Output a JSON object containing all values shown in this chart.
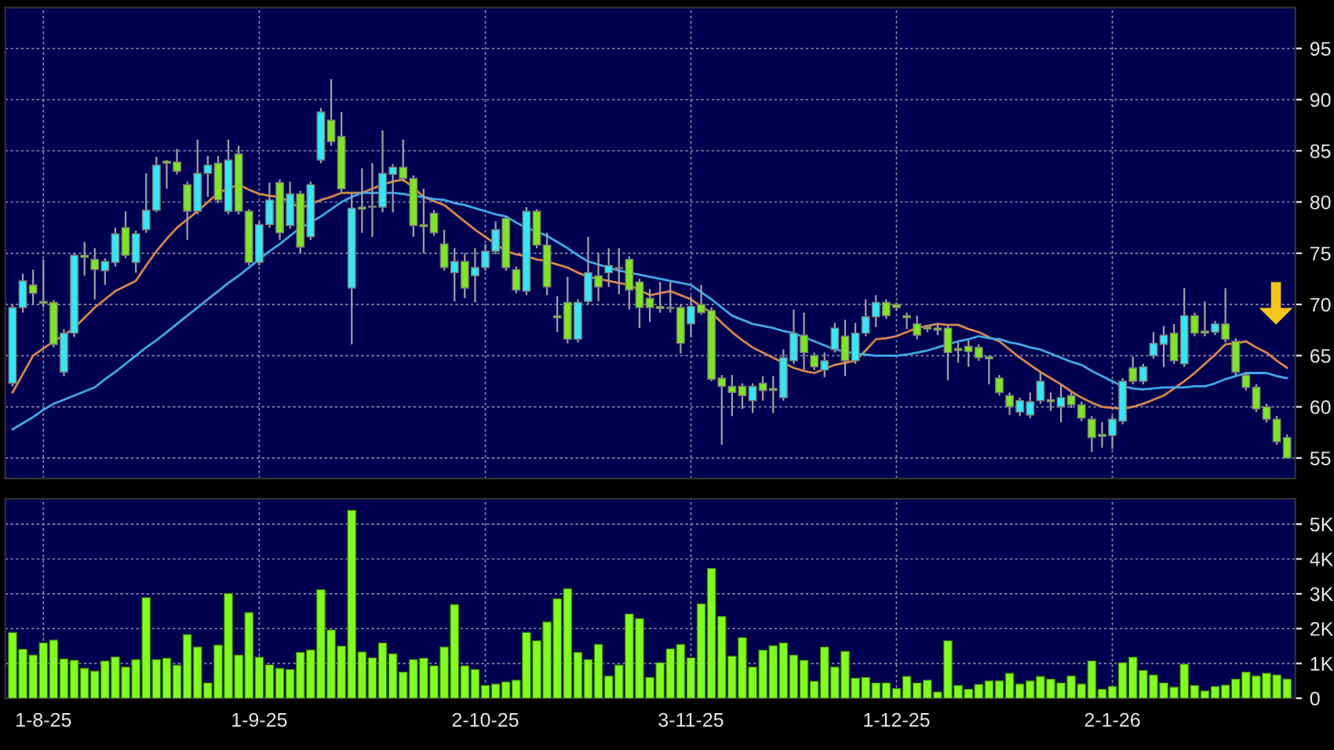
{
  "chart_data": [
    {
      "type": "candlestick",
      "tick_labels": "y",
      "grid": true,
      "ylim": [
        53,
        99
      ],
      "yticks": [
        55,
        60,
        65,
        70,
        75,
        80,
        85,
        90,
        95
      ],
      "categories": [
        null,
        null,
        null,
        null,
        null,
        null,
        null,
        null,
        null,
        null,
        null,
        null,
        null,
        null,
        null,
        null,
        null,
        null,
        null,
        null,
        null,
        null,
        null,
        null,
        null,
        null,
        null,
        null,
        null,
        null,
        null,
        null,
        null,
        null,
        null,
        null,
        null,
        null,
        null,
        null,
        null,
        null,
        null,
        null,
        null,
        null,
        null,
        null,
        null,
        null,
        null,
        null,
        null,
        null,
        null,
        null,
        null,
        null,
        null,
        null,
        null,
        null,
        null,
        null,
        null,
        null,
        null,
        null,
        null,
        null,
        null,
        null,
        null,
        null,
        null,
        null,
        null,
        null,
        null,
        null,
        null,
        null,
        null,
        null,
        null,
        null,
        null,
        null,
        null,
        null,
        null,
        null,
        null,
        null,
        null,
        null,
        null,
        null,
        null,
        null,
        null,
        null,
        null,
        null,
        null,
        null,
        null,
        null,
        null,
        null,
        null,
        null,
        null,
        null,
        null,
        null,
        null,
        null,
        null,
        null,
        null,
        null,
        null,
        null,
        null
      ],
      "ohlc": [
        [
          62.3,
          70,
          62,
          69.7
        ],
        [
          69.7,
          73,
          69.2,
          72.3
        ],
        [
          71.9,
          73.4,
          70,
          71.1
        ],
        [
          70.3,
          74.4,
          69.7,
          70.1
        ],
        [
          70.2,
          70.4,
          65.8,
          66.1
        ],
        [
          63.4,
          67.6,
          63,
          67.2
        ],
        [
          67.2,
          75,
          66.8,
          74.8
        ],
        [
          74.8,
          76.1,
          72.8,
          74.6
        ],
        [
          74.4,
          75.5,
          70.5,
          73.4
        ],
        [
          73.3,
          74.5,
          71.9,
          74.2
        ],
        [
          74.1,
          77.5,
          73.7,
          76.9
        ],
        [
          77.5,
          79.1,
          74.5,
          74.8
        ],
        [
          74.1,
          77.2,
          73.1,
          76.9
        ],
        [
          77.3,
          82.8,
          77,
          79.2
        ],
        [
          79.2,
          84.4,
          79,
          83.6
        ],
        [
          84,
          84.1,
          81.3,
          83.8
        ],
        [
          83.9,
          85.2,
          82.7,
          83
        ],
        [
          81.7,
          82,
          76.3,
          79.1
        ],
        [
          79.1,
          86.1,
          78.8,
          82.8
        ],
        [
          82.8,
          84.5,
          80.5,
          83.6
        ],
        [
          83.8,
          84.5,
          79.9,
          80.2
        ],
        [
          79.1,
          86.1,
          78.8,
          84.1
        ],
        [
          84.7,
          85.5,
          78.8,
          79.1
        ],
        [
          79.1,
          79.3,
          73.8,
          74.1
        ],
        [
          74.1,
          78.1,
          73.8,
          77.8
        ],
        [
          77.8,
          81.9,
          77.5,
          80.2
        ],
        [
          81.9,
          82.2,
          76.3,
          77
        ],
        [
          77.7,
          82,
          77.4,
          80.8
        ],
        [
          80.8,
          81.1,
          75,
          75.6
        ],
        [
          76.6,
          82,
          76.3,
          81.7
        ],
        [
          84.1,
          89.2,
          83.8,
          88.8
        ],
        [
          88,
          92,
          85.5,
          85.9
        ],
        [
          86.4,
          88.8,
          81,
          81.3
        ],
        [
          71.6,
          81,
          66.1,
          79.4
        ],
        [
          79.5,
          83.3,
          77,
          79.3
        ],
        [
          79.5,
          83.8,
          76.6,
          79.6
        ],
        [
          79.5,
          87,
          79,
          82.8
        ],
        [
          82.7,
          83.7,
          79,
          83.4
        ],
        [
          83.4,
          86.1,
          82,
          82.3
        ],
        [
          82.3,
          82.6,
          76.6,
          77.7
        ],
        [
          77.8,
          81.3,
          75,
          77.6
        ],
        [
          78.9,
          79.2,
          76.7,
          77
        ],
        [
          75.9,
          77.3,
          73.3,
          73.6
        ],
        [
          73.1,
          75.5,
          70.3,
          74.2
        ],
        [
          74.2,
          75,
          70.6,
          71.6
        ],
        [
          72.8,
          75.5,
          70.2,
          73.6
        ],
        [
          73.6,
          75.9,
          73.3,
          75.2
        ],
        [
          75.2,
          78.1,
          74.9,
          77.3
        ],
        [
          78.4,
          78.6,
          73.3,
          73.6
        ],
        [
          73.4,
          73.7,
          71.1,
          71.4
        ],
        [
          71.3,
          79.5,
          70.9,
          79.1
        ],
        [
          79.1,
          79.3,
          75.5,
          75.8
        ],
        [
          75.8,
          77,
          70.9,
          71.7
        ],
        [
          68.9,
          70.8,
          67.3,
          68.7
        ],
        [
          70.2,
          72.7,
          66.2,
          66.6
        ],
        [
          66.6,
          70.5,
          66.3,
          70.2
        ],
        [
          70.3,
          76.6,
          70,
          73.1
        ],
        [
          72.8,
          75,
          70.3,
          71.7
        ],
        [
          73.1,
          75.5,
          71.7,
          73.8
        ],
        [
          73.6,
          75.5,
          71,
          73.5
        ],
        [
          74.4,
          74.7,
          69.5,
          71.4
        ],
        [
          72.2,
          72.5,
          67.7,
          69.7
        ],
        [
          70.6,
          71.5,
          68.3,
          69.7
        ],
        [
          69.8,
          72.2,
          69.2,
          69.6
        ],
        [
          69.6,
          72.2,
          69.2,
          69.7
        ],
        [
          69.7,
          70,
          65.2,
          66.2
        ],
        [
          68.1,
          70.8,
          66.8,
          69.8
        ],
        [
          70,
          71.9,
          69,
          69.2
        ],
        [
          69.4,
          69.7,
          62.5,
          62.7
        ],
        [
          62.8,
          63.1,
          56.3,
          62
        ],
        [
          62,
          63.1,
          59.1,
          61.4
        ],
        [
          62,
          62.3,
          59.8,
          61.1
        ],
        [
          60.6,
          62.3,
          59.4,
          62
        ],
        [
          62.3,
          63,
          60.6,
          61.6
        ],
        [
          61.8,
          63,
          59.4,
          61.6
        ],
        [
          60.9,
          65.6,
          60.6,
          64.8
        ],
        [
          64.5,
          69.5,
          64.2,
          67.2
        ],
        [
          67,
          69.2,
          63.6,
          65.3
        ],
        [
          65,
          65.3,
          63.6,
          63.9
        ],
        [
          63.6,
          65.3,
          62.9,
          64.5
        ],
        [
          65.6,
          68.2,
          65.3,
          67.7
        ],
        [
          66.9,
          68.5,
          63,
          64.5
        ],
        [
          64.5,
          68.2,
          64.2,
          67.2
        ],
        [
          67.2,
          70.5,
          66.9,
          68.8
        ],
        [
          68.8,
          70.9,
          67.8,
          70.2
        ],
        [
          70.2,
          70.5,
          68.6,
          68.9
        ],
        [
          70,
          70.2,
          69.4,
          69.7
        ],
        [
          68.9,
          69.2,
          67.6,
          68.7
        ],
        [
          68.1,
          68.9,
          66.6,
          67
        ],
        [
          67.8,
          68,
          67.3,
          67.6
        ],
        [
          67.7,
          68.2,
          67,
          67.5
        ],
        [
          67.7,
          68,
          62.6,
          65.3
        ],
        [
          65.7,
          66.3,
          64.3,
          65.5
        ],
        [
          65.9,
          66.5,
          63.9,
          65.4
        ],
        [
          65.8,
          66.1,
          64.5,
          64.8
        ],
        [
          64.9,
          65,
          62.2,
          64.7
        ],
        [
          62.8,
          63.1,
          61.1,
          61.4
        ],
        [
          61.1,
          61.4,
          59.2,
          60
        ],
        [
          59.5,
          60.9,
          59.1,
          60.6
        ],
        [
          59.2,
          61.4,
          58.9,
          60.5
        ],
        [
          60.6,
          63.4,
          60.3,
          62.5
        ],
        [
          60.7,
          61.4,
          59.6,
          60.5
        ],
        [
          60,
          62.2,
          58.5,
          60.9
        ],
        [
          61.1,
          61.4,
          59.9,
          60.2
        ],
        [
          60.2,
          60.5,
          58.6,
          58.9
        ],
        [
          58.8,
          59.1,
          55.6,
          57
        ],
        [
          57.3,
          58.5,
          56,
          57.1
        ],
        [
          57.2,
          59.1,
          55.9,
          58.8
        ],
        [
          58.6,
          62.8,
          58.3,
          62.5
        ],
        [
          63.8,
          64.9,
          62.2,
          62.5
        ],
        [
          62.5,
          64.2,
          62.2,
          63.9
        ],
        [
          65,
          67.3,
          64.7,
          66.2
        ],
        [
          66.1,
          67.9,
          63.9,
          67
        ],
        [
          67.2,
          68.1,
          64.2,
          64.5
        ],
        [
          64.2,
          71.6,
          63.9,
          68.9
        ],
        [
          68.9,
          69.2,
          66.9,
          67.2
        ],
        [
          67.4,
          70.3,
          66.9,
          67.2
        ],
        [
          67.3,
          68.4,
          67,
          68.1
        ],
        [
          68.1,
          71.6,
          66.3,
          66.6
        ],
        [
          66.4,
          66.7,
          63.1,
          63.4
        ],
        [
          63.1,
          63.4,
          61.6,
          61.9
        ],
        [
          61.9,
          62.2,
          59.5,
          59.8
        ],
        [
          60,
          60.3,
          58.5,
          58.8
        ],
        [
          58.8,
          59.1,
          56.3,
          56.6
        ],
        [
          57,
          57.3,
          55,
          55
        ]
      ],
      "colors": [
        "#33e8f5",
        "#33e8f5",
        "#7ee61e",
        "#7ee61e",
        "#7ee61e",
        "#33e8f5",
        "#33e8f5",
        "#7ee61e",
        "#7ee61e",
        "#33e8f5",
        "#33e8f5",
        "#7ee61e",
        "#33e8f5",
        "#33e8f5",
        "#33e8f5",
        "#7ee61e",
        "#7ee61e",
        "#7ee61e",
        "#33e8f5",
        "#33e8f5",
        "#7ee61e",
        "#33e8f5",
        "#7ee61e",
        "#7ee61e",
        "#33e8f5",
        "#33e8f5",
        "#7ee61e",
        "#33e8f5",
        "#7ee61e",
        "#33e8f5",
        "#33e8f5",
        "#7ee61e",
        "#7ee61e",
        "#33e8f5",
        "#7ee61e",
        "#33e8f5",
        "#33e8f5",
        "#33e8f5",
        "#7ee61e",
        "#7ee61e",
        "#7ee61e",
        "#7ee61e",
        "#7ee61e",
        "#33e8f5",
        "#7ee61e",
        "#33e8f5",
        "#33e8f5",
        "#33e8f5",
        "#7ee61e",
        "#7ee61e",
        "#33e8f5",
        "#7ee61e",
        "#7ee61e",
        "#7ee61e",
        "#7ee61e",
        "#33e8f5",
        "#33e8f5",
        "#7ee61e",
        "#33e8f5",
        "#7ee61e",
        "#7ee61e",
        "#7ee61e",
        "#7ee61e",
        "#7ee61e",
        "#33e8f5",
        "#7ee61e",
        "#33e8f5",
        "#7ee61e",
        "#7ee61e",
        "#7ee61e",
        "#7ee61e",
        "#7ee61e",
        "#33e8f5",
        "#7ee61e",
        "#7ee61e",
        "#33e8f5",
        "#33e8f5",
        "#7ee61e",
        "#7ee61e",
        "#33e8f5",
        "#33e8f5",
        "#7ee61e",
        "#33e8f5",
        "#33e8f5",
        "#33e8f5",
        "#7ee61e",
        "#7ee61e",
        "#7ee61e",
        "#7ee61e",
        "#7ee61e",
        "#7ee61e",
        "#7ee61e",
        "#7ee61e",
        "#7ee61e",
        "#7ee61e",
        "#7ee61e",
        "#7ee61e",
        "#7ee61e",
        "#33e8f5",
        "#33e8f5",
        "#33e8f5",
        "#7ee61e",
        "#33e8f5",
        "#7ee61e",
        "#7ee61e",
        "#7ee61e",
        "#7ee61e",
        "#33e8f5",
        "#33e8f5",
        "#7ee61e",
        "#33e8f5",
        "#33e8f5",
        "#33e8f5",
        "#7ee61e",
        "#33e8f5",
        "#7ee61e",
        "#7ee61e",
        "#33e8f5",
        "#7ee61e",
        "#7ee61e",
        "#7ee61e",
        "#7ee61e",
        "#7ee61e",
        "#7ee61e",
        "#7ee61e"
      ],
      "series": [
        {
          "type": "line",
          "color": "#d9874a",
          "values": [
            61.4,
            63.2,
            65,
            65.7,
            66.4,
            67,
            67.7,
            68.7,
            69.7,
            70.5,
            71.3,
            71.8,
            72.3,
            73.8,
            75.2,
            76.4,
            77.5,
            78.3,
            79.1,
            80,
            80.9,
            81.3,
            81.7,
            81.2,
            80.8,
            80.6,
            80.5,
            80,
            79.4,
            79.8,
            80.2,
            80.5,
            80.9,
            80.9,
            80.9,
            81.3,
            81.7,
            82,
            82.2,
            81.4,
            80.5,
            80.1,
            79.7,
            78.9,
            78.1,
            77.3,
            76.6,
            75.9,
            75.2,
            74.9,
            74.7,
            74.4,
            74.2,
            73.9,
            73.6,
            73.1,
            72.7,
            72.5,
            72.3,
            72.1,
            71.9,
            71.4,
            70.9,
            71.1,
            71.3,
            70.9,
            70.5,
            69.8,
            69.2,
            68.2,
            67.3,
            66.5,
            65.8,
            65.3,
            64.8,
            64.3,
            63.8,
            63.5,
            63.3,
            63.7,
            64.1,
            64.3,
            64.5,
            65.5,
            66.6,
            66.7,
            66.9,
            67.3,
            67.7,
            67.9,
            68.1,
            68,
            68,
            67.6,
            67.3,
            66.8,
            66.4,
            65.6,
            64.8,
            64.1,
            63.4,
            62.8,
            62.2,
            61.5,
            60.9,
            60.4,
            60,
            59.9,
            59.8,
            60,
            60.3,
            60.7,
            61.1,
            61.8,
            62.5,
            63.3,
            64.2,
            65.1,
            66.1,
            66.2,
            66.4,
            65.8,
            65.3,
            64.5,
            63.8
          ]
        },
        {
          "type": "line",
          "color": "#3fa9e8",
          "values": [
            57.8,
            58.4,
            59,
            59.7,
            60.3,
            60.7,
            61.1,
            61.5,
            61.9,
            62.7,
            63.4,
            64.2,
            65,
            65.8,
            66.5,
            67.3,
            68.1,
            68.9,
            69.7,
            70.5,
            71.3,
            72.1,
            72.8,
            73.6,
            74.4,
            75.2,
            75.9,
            76.7,
            77.5,
            78,
            78.6,
            79.3,
            80,
            80.5,
            80.9,
            80.9,
            80.9,
            80.9,
            80.8,
            80.6,
            80.5,
            80.3,
            80.2,
            79.9,
            79.7,
            79.4,
            79.1,
            78.8,
            78.6,
            78,
            77.5,
            77.1,
            76.7,
            76.1,
            75.5,
            74.8,
            74.2,
            73.9,
            73.6,
            73.3,
            73.1,
            72.9,
            72.7,
            72.5,
            72.3,
            72.1,
            71.9,
            71.2,
            70.5,
            69.7,
            68.9,
            68.5,
            68.1,
            67.9,
            67.7,
            67.4,
            67.2,
            66.8,
            66.4,
            66,
            65.6,
            65.4,
            65.2,
            65.1,
            65,
            65,
            65,
            65.1,
            65.3,
            65.5,
            65.8,
            66.1,
            66.4,
            66.6,
            66.9,
            66.7,
            66.6,
            66.3,
            66.1,
            65.8,
            65.6,
            65.2,
            64.8,
            64.4,
            64.1,
            63.5,
            63,
            62.5,
            62,
            61.8,
            61.7,
            61.8,
            61.9,
            61.9,
            61.9,
            62,
            62,
            62.3,
            62.7,
            63,
            63.3,
            63.3,
            63.3,
            63,
            62.8
          ]
        }
      ]
    },
    {
      "type": "bar",
      "grid": true,
      "color": "#80ff1a",
      "ylim": [
        0,
        5.73
      ],
      "yticks": [
        0,
        {
          "value": 1,
          "label": "1K"
        },
        {
          "value": 2,
          "label": "2K"
        },
        {
          "value": 3,
          "label": "3K"
        },
        {
          "value": 4,
          "label": "4K"
        },
        {
          "value": 5,
          "label": "5K"
        }
      ],
      "categories": [
        null,
        null,
        null,
        "1-8-25",
        null,
        null,
        null,
        null,
        null,
        null,
        null,
        null,
        null,
        null,
        null,
        null,
        null,
        null,
        null,
        null,
        null,
        null,
        null,
        null,
        "1-9-25",
        null,
        null,
        null,
        null,
        null,
        null,
        null,
        null,
        null,
        null,
        null,
        null,
        null,
        null,
        null,
        null,
        null,
        null,
        null,
        null,
        null,
        "2-10-25",
        null,
        null,
        null,
        null,
        null,
        null,
        null,
        null,
        null,
        null,
        null,
        null,
        null,
        null,
        null,
        null,
        null,
        null,
        null,
        "3-11-25",
        null,
        null,
        null,
        null,
        null,
        null,
        null,
        null,
        null,
        null,
        null,
        null,
        null,
        null,
        null,
        null,
        null,
        null,
        null,
        "1-12-25",
        null,
        null,
        null,
        null,
        null,
        null,
        null,
        null,
        null,
        null,
        null,
        null,
        null,
        null,
        null,
        null,
        null,
        null,
        null,
        null,
        "2-1-26",
        null,
        null,
        null,
        null,
        null,
        null,
        null,
        null,
        null,
        null,
        null,
        null,
        null,
        null,
        null,
        null,
        null
      ],
      "values": [
        1.89,
        1.41,
        1.24,
        1.59,
        1.67,
        1.13,
        1.09,
        0.86,
        0.78,
        1.07,
        1.19,
        0.9,
        1.11,
        2.89,
        1.11,
        1.15,
        0.95,
        1.83,
        1.47,
        0.44,
        1.53,
        3.01,
        1.24,
        2.46,
        1.18,
        0.96,
        0.86,
        0.83,
        1.32,
        1.39,
        3.12,
        1.96,
        1.5,
        5.4,
        1.33,
        1.16,
        1.59,
        1.28,
        0.75,
        1.11,
        1.15,
        0.93,
        1.47,
        2.69,
        0.93,
        0.83,
        0.37,
        0.41,
        0.47,
        0.52,
        1.89,
        1.65,
        2.19,
        2.86,
        3.15,
        1.32,
        1.11,
        1.55,
        0.64,
        0.95,
        2.42,
        2.29,
        0.6,
        1.02,
        1.42,
        1.55,
        1.16,
        2.71,
        3.73,
        2.35,
        1.21,
        1.74,
        0.9,
        1.38,
        1.51,
        1.59,
        1.24,
        1.09,
        0.49,
        1.47,
        0.9,
        1.35,
        0.58,
        0.6,
        0.44,
        0.44,
        0.28,
        0.63,
        0.44,
        0.52,
        0.18,
        1.65,
        0.37,
        0.26,
        0.4,
        0.5,
        0.5,
        0.72,
        0.41,
        0.5,
        0.63,
        0.55,
        0.44,
        0.64,
        0.41,
        1.07,
        0.26,
        0.34,
        1.02,
        1.18,
        0.8,
        0.67,
        0.44,
        0.32,
        0.98,
        0.37,
        0.21,
        0.34,
        0.38,
        0.55,
        0.75,
        0.64,
        0.72,
        0.67,
        0.55
      ]
    }
  ]
}
